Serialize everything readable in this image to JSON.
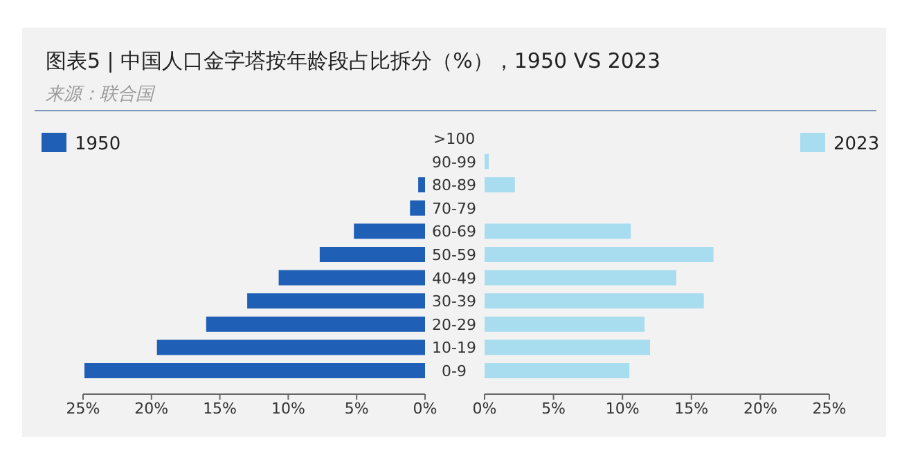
{
  "chart_data": [
    {
      "type": "bar",
      "orientation": "horizontal",
      "title": "图表5 | 中国人口金字塔按年龄段占比拆分（%），1950 VS 2023",
      "annotations": [
        "来源：联合国"
      ],
      "categories": [
        ">100",
        "90-99",
        "80-89",
        "70-79",
        "60-69",
        "50-59",
        "40-49",
        "30-39",
        "20-29",
        "10-19",
        "0-9"
      ],
      "series": [
        {
          "name": "1950",
          "color": "#1f5fb5",
          "values": [
            0,
            0,
            0.5,
            1.1,
            5.2,
            7.7,
            10.7,
            13.0,
            16.0,
            19.6,
            24.9
          ]
        }
      ],
      "xlim": [
        25,
        0
      ],
      "xticks": [
        {
          "value": 25,
          "label": "25%"
        },
        {
          "value": 20,
          "label": "20%"
        },
        {
          "value": 15,
          "label": "15%"
        },
        {
          "value": 10,
          "label": "10%"
        },
        {
          "value": 5,
          "label": "5%"
        },
        {
          "value": 0,
          "label": "0%"
        }
      ],
      "legend": "top left"
    },
    {
      "type": "bar",
      "orientation": "horizontal",
      "categories": [
        null,
        null,
        null,
        null,
        null,
        null,
        null,
        null,
        null,
        null,
        null
      ],
      "series": [
        {
          "name": "2023",
          "color": "#a8dcef",
          "values": [
            0,
            0.3,
            2.2,
            null,
            10.6,
            16.6,
            13.9,
            15.9,
            11.6,
            12.0,
            10.5
          ]
        }
      ],
      "xlim": [
        0,
        25
      ],
      "xticks": [
        {
          "value": 0,
          "label": "0%"
        },
        {
          "value": 5,
          "label": "5%"
        },
        {
          "value": 10,
          "label": "10%"
        },
        {
          "value": 15,
          "label": "15%"
        },
        {
          "value": 20,
          "label": "20%"
        },
        {
          "value": 25,
          "label": "25%"
        }
      ],
      "legend": "top right",
      "tick_labels": "x"
    }
  ]
}
